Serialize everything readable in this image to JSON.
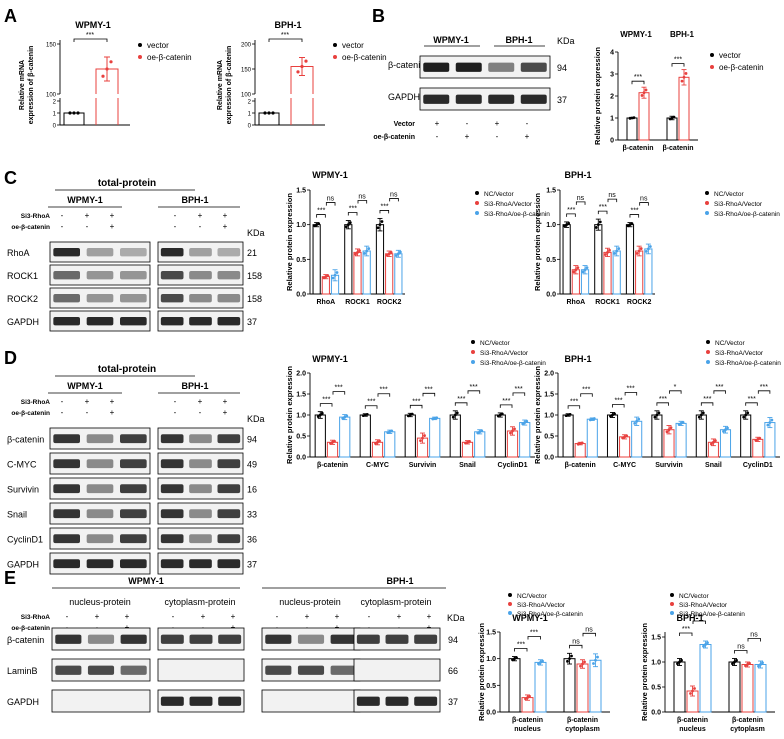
{
  "colors": {
    "black": "#000000",
    "red": "#e8403e",
    "blue": "#4aa3e8",
    "blot_dark": "#1a1a1a"
  },
  "ylab": "Relative protein expression",
  "panelA": {
    "label": "A",
    "ylab": "Relative mRNA\nexpression of β-catenin",
    "legend": [
      "vector",
      "oe-β-catenin"
    ],
    "charts": [
      {
        "title": "WPMY-1",
        "type": "bar",
        "categories": [
          "vector",
          "oe-β-catenin"
        ],
        "values": [
          1.0,
          125
        ],
        "errors": [
          0.08,
          12
        ],
        "sig": "***",
        "yticks_low": [
          "0",
          "1",
          "2"
        ],
        "yticks_high": [
          "100",
          "150"
        ]
      },
      {
        "title": "BPH-1",
        "type": "bar",
        "categories": [
          "vector",
          "oe-β-catenin"
        ],
        "values": [
          1.0,
          155
        ],
        "errors": [
          0.06,
          18
        ],
        "sig": "***",
        "yticks_low": [
          "0",
          "1",
          "2"
        ],
        "yticks_high": [
          "100",
          "150",
          "200"
        ]
      }
    ]
  },
  "panelB": {
    "label": "B",
    "cells": [
      "WPMY-1",
      "BPH-1"
    ],
    "kda": "KDa",
    "bands": [
      {
        "name": "β-catenin",
        "kda": "94"
      },
      {
        "name": "GAPDH",
        "kda": "37"
      }
    ],
    "treat_rows": [
      {
        "name": "Vector",
        "signs": [
          "+",
          "-",
          "+",
          "-"
        ]
      },
      {
        "name": "oe-β-catenin",
        "signs": [
          "-",
          "+",
          "-",
          "+"
        ]
      }
    ],
    "chart": {
      "type": "bar",
      "groups": [
        "WPMY-1",
        "BPH-1"
      ],
      "categories": [
        "β-catenin",
        "β-catenin"
      ],
      "series": [
        {
          "name": "vector",
          "values": [
            1.0,
            1.0
          ],
          "errors": [
            0.03,
            0.08
          ]
        },
        {
          "name": "oe-β-catenin",
          "values": [
            2.15,
            2.85
          ],
          "errors": [
            0.25,
            0.35
          ]
        }
      ],
      "sig": [
        "***",
        "***"
      ],
      "yticks": [
        "0",
        "1",
        "2",
        "3",
        "4"
      ],
      "ylim": [
        0,
        4
      ]
    },
    "legend": [
      "vector",
      "oe-β-catenin"
    ]
  },
  "panelC": {
    "label": "C",
    "title": "total-protein",
    "cells": [
      "WPMY-1",
      "BPH-1"
    ],
    "kda": "KDa",
    "treat_rows": [
      {
        "name": "Si3-RhoA",
        "signs": [
          "-",
          "+",
          "+",
          "-",
          "+",
          "+"
        ]
      },
      {
        "name": "oe-β-catenin",
        "signs": [
          "-",
          "-",
          "+",
          "-",
          "-",
          "+"
        ]
      }
    ],
    "bands": [
      {
        "name": "RhoA",
        "kda": "21"
      },
      {
        "name": "ROCK1",
        "kda": "158"
      },
      {
        "name": "ROCK2",
        "kda": "158"
      },
      {
        "name": "GAPDH",
        "kda": "37"
      }
    ],
    "legend": [
      "NC/Vector",
      "Si3-RhoA/Vector",
      "Si3-RhoA/oe-β-catenin"
    ],
    "charts": [
      {
        "title": "WPMY-1",
        "type": "bar",
        "categories": [
          "RhoA",
          "ROCK1",
          "ROCK2"
        ],
        "series": [
          {
            "name": "NC/Vector",
            "values": [
              1.0,
              1.0,
              1.0
            ],
            "errors": [
              0.03,
              0.06,
              0.09
            ]
          },
          {
            "name": "Si3-RhoA/Vector",
            "values": [
              0.25,
              0.6,
              0.58
            ],
            "errors": [
              0.03,
              0.05,
              0.04
            ]
          },
          {
            "name": "Si3-RhoA/oe-β-catenin",
            "values": [
              0.27,
              0.62,
              0.58
            ],
            "errors": [
              0.08,
              0.07,
              0.05
            ]
          }
        ],
        "sig1": [
          "***",
          "***",
          "***"
        ],
        "sig2": [
          "ns",
          "ns",
          "ns"
        ],
        "yticks": [
          "0.0",
          "0.5",
          "1.0",
          "1.5"
        ],
        "ylim": [
          0,
          1.5
        ]
      },
      {
        "title": "BPH-1",
        "type": "bar",
        "categories": [
          "RhoA",
          "ROCK1",
          "ROCK2"
        ],
        "series": [
          {
            "name": "NC/Vector",
            "values": [
              1.0,
              1.0,
              1.0
            ],
            "errors": [
              0.04,
              0.08,
              0.03
            ]
          },
          {
            "name": "Si3-RhoA/Vector",
            "values": [
              0.35,
              0.6,
              0.62
            ],
            "errors": [
              0.06,
              0.06,
              0.07
            ]
          },
          {
            "name": "Si3-RhoA/oe-β-catenin",
            "values": [
              0.35,
              0.62,
              0.65
            ],
            "errors": [
              0.06,
              0.07,
              0.07
            ]
          }
        ],
        "sig1": [
          "***",
          "***",
          "***"
        ],
        "sig2": [
          "ns",
          "ns",
          "ns"
        ],
        "yticks": [
          "0.0",
          "0.5",
          "1.0",
          "1.5"
        ],
        "ylim": [
          0,
          1.5
        ]
      }
    ]
  },
  "panelD": {
    "label": "D",
    "title": "total-protein",
    "cells": [
      "WPMY-1",
      "BPH-1"
    ],
    "kda": "KDa",
    "treat_rows": [
      {
        "name": "Si3-RhoA",
        "signs": [
          "-",
          "+",
          "+",
          "-",
          "+",
          "+"
        ]
      },
      {
        "name": "oe-β-catenin",
        "signs": [
          "-",
          "-",
          "+",
          "-",
          "-",
          "+"
        ]
      }
    ],
    "bands": [
      {
        "name": "β-catenin",
        "kda": "94"
      },
      {
        "name": "C-MYC",
        "kda": "49"
      },
      {
        "name": "Survivin",
        "kda": "16"
      },
      {
        "name": "Snail",
        "kda": "33"
      },
      {
        "name": "CyclinD1",
        "kda": "36"
      },
      {
        "name": "GAPDH",
        "kda": "37"
      }
    ],
    "legend": [
      "NC/Vector",
      "Si3-RhoA/Vector",
      "Si3-RhoA/oe-β-catenin"
    ],
    "charts": [
      {
        "title": "WPMY-1",
        "type": "bar",
        "categories": [
          "β-catenin",
          "C-MYC",
          "Survivin",
          "Snail",
          "CyclinD1"
        ],
        "series": [
          {
            "name": "NC/Vector",
            "values": [
              1.0,
              1.0,
              1.0,
              1.0,
              1.0
            ],
            "errors": [
              0.08,
              0.03,
              0.04,
              0.1,
              0.05
            ]
          },
          {
            "name": "Si3-RhoA/Vector",
            "values": [
              0.35,
              0.35,
              0.45,
              0.35,
              0.62
            ],
            "errors": [
              0.05,
              0.06,
              0.12,
              0.04,
              0.1
            ]
          },
          {
            "name": "Si3-RhoA/oe-β-catenin",
            "values": [
              0.95,
              0.6,
              0.92,
              0.6,
              0.82
            ],
            "errors": [
              0.06,
              0.04,
              0.03,
              0.05,
              0.06
            ]
          }
        ],
        "sig1": [
          "***",
          "***",
          "***",
          "***",
          "***"
        ],
        "sig2": [
          "***",
          "***",
          "***",
          "***",
          "***"
        ],
        "yticks": [
          "0.0",
          "0.5",
          "1.0",
          "1.5",
          "2.0"
        ],
        "ylim": [
          0,
          2.0
        ]
      },
      {
        "title": "BPH-1",
        "type": "bar",
        "categories": [
          "β-catenin",
          "C-MYC",
          "Survivin",
          "Snail",
          "CyclinD1"
        ],
        "series": [
          {
            "name": "NC/Vector",
            "values": [
              1.0,
              1.0,
              1.0,
              1.0,
              1.0
            ],
            "errors": [
              0.03,
              0.06,
              0.1,
              0.1,
              0.1
            ]
          },
          {
            "name": "Si3-RhoA/Vector",
            "values": [
              0.32,
              0.48,
              0.65,
              0.35,
              0.42
            ],
            "errors": [
              0.03,
              0.05,
              0.1,
              0.08,
              0.05
            ]
          },
          {
            "name": "Si3-RhoA/oe-β-catenin",
            "values": [
              0.9,
              0.85,
              0.8,
              0.65,
              0.82
            ],
            "errors": [
              0.03,
              0.1,
              0.05,
              0.08,
              0.12
            ]
          }
        ],
        "sig1": [
          "***",
          "***",
          "***",
          "***",
          "***"
        ],
        "sig2": [
          "***",
          "***",
          "*",
          "***",
          "***"
        ],
        "yticks": [
          "0.0",
          "0.5",
          "1.0",
          "1.5",
          "2.0"
        ],
        "ylim": [
          0,
          2.0
        ]
      }
    ]
  },
  "panelE": {
    "label": "E",
    "cells": [
      "WPMY-1",
      "BPH-1"
    ],
    "fractions": [
      "nucleus-protein",
      "cytoplasm-protein"
    ],
    "kda": "KDa",
    "treat_rows": [
      {
        "name": "Si3-RhoA",
        "signs": [
          "-",
          "+",
          "+"
        ]
      },
      {
        "name": "oe-β-catenin",
        "signs": [
          "-",
          "-",
          "+"
        ]
      }
    ],
    "bands": [
      {
        "name": "β-catenin",
        "kda": "94"
      },
      {
        "name": "LaminB",
        "kda": "66"
      },
      {
        "name": "GAPDH",
        "kda": "37"
      }
    ],
    "legend": [
      "NC/Vector",
      "Si3-RhoA/Vector",
      "Si3-RhoA/oe-β-catenin"
    ],
    "charts": [
      {
        "title": "WPMY-1",
        "type": "bar",
        "categories": [
          "β-catenin\nnucleus",
          "β-catenin\ncytoplasm"
        ],
        "series": [
          {
            "name": "NC/Vector",
            "values": [
              1.0,
              1.0
            ],
            "errors": [
              0.04,
              0.1
            ]
          },
          {
            "name": "Si3-RhoA/Vector",
            "values": [
              0.27,
              0.9
            ],
            "errors": [
              0.05,
              0.08
            ]
          },
          {
            "name": "Si3-RhoA/oe-β-catenin",
            "values": [
              0.93,
              0.97
            ],
            "errors": [
              0.05,
              0.12
            ]
          }
        ],
        "sig1": [
          "***",
          "ns"
        ],
        "sig2": [
          "***",
          "ns"
        ],
        "yticks": [
          "0.0",
          "0.5",
          "1.0",
          "1.5"
        ],
        "ylim": [
          0,
          1.5
        ]
      },
      {
        "title": "BPH-1",
        "type": "bar",
        "categories": [
          "β-catenin\nnucleus",
          "β-catenin\ncytoplasm"
        ],
        "series": [
          {
            "name": "NC/Vector",
            "values": [
              1.0,
              1.0
            ],
            "errors": [
              0.07,
              0.07
            ]
          },
          {
            "name": "Si3-RhoA/Vector",
            "values": [
              0.42,
              0.95
            ],
            "errors": [
              0.1,
              0.05
            ]
          },
          {
            "name": "Si3-RhoA/oe-β-catenin",
            "values": [
              1.35,
              0.95
            ],
            "errors": [
              0.07,
              0.07
            ]
          }
        ],
        "sig1": [
          "***",
          "ns"
        ],
        "sig2": [
          "***",
          "ns"
        ],
        "yticks": [
          "0.0",
          "0.5",
          "1.0",
          "1.5"
        ],
        "ylim": [
          0,
          1.6
        ]
      }
    ]
  }
}
